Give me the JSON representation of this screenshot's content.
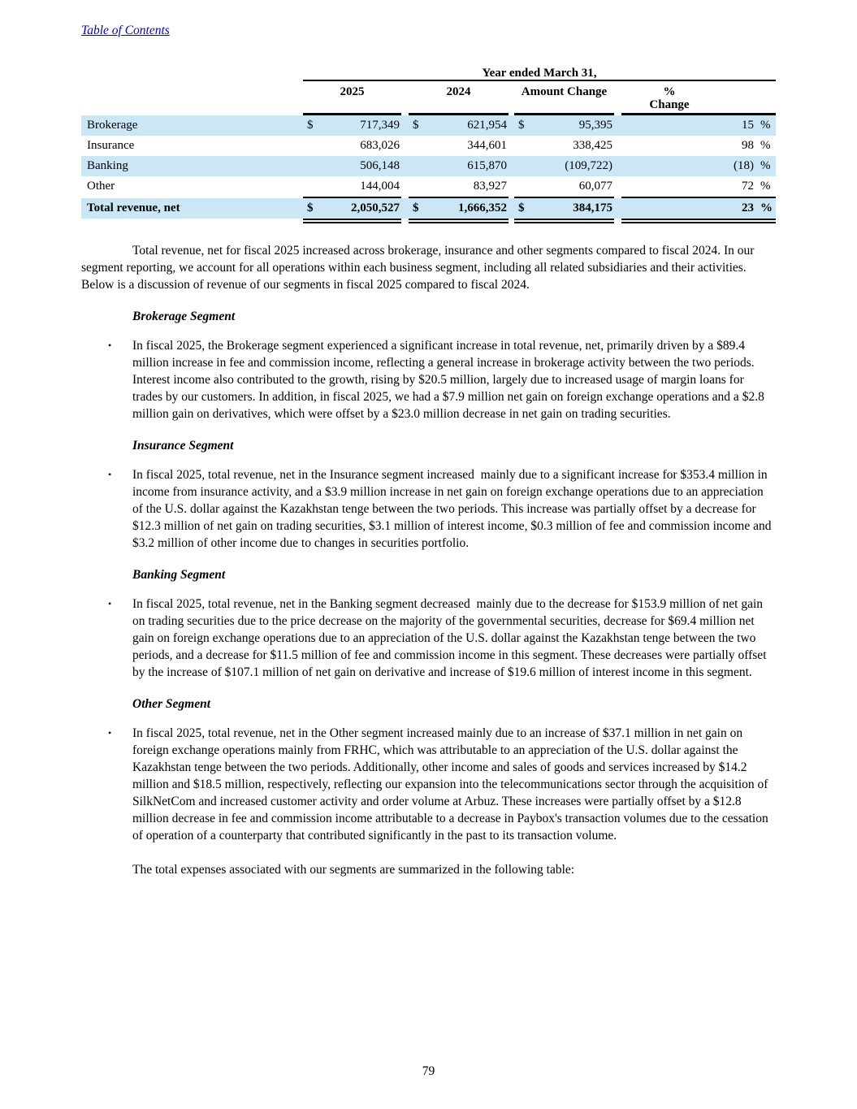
{
  "header": {
    "toc_link": "Table of Contents"
  },
  "table": {
    "spanner": "Year ended March 31,",
    "headers": {
      "y2025": "2025",
      "y2024": "2024",
      "amount": "Amount Change",
      "pct_line1": "%",
      "pct_line2": "Change"
    },
    "rows": [
      {
        "label": "Brokerage",
        "d1": "$",
        "v2025": "717,349",
        "d2": "$",
        "v2024": "621,954",
        "d3": "$",
        "change": "95,395",
        "pct": "15",
        "pct_sign": "%"
      },
      {
        "label": "Insurance",
        "d1": "",
        "v2025": "683,026",
        "d2": "",
        "v2024": "344,601",
        "d3": "",
        "change": "338,425",
        "pct": "98",
        "pct_sign": "%"
      },
      {
        "label": "Banking",
        "d1": "",
        "v2025": "506,148",
        "d2": "",
        "v2024": "615,870",
        "d3": "",
        "change": "(109,722)",
        "pct": "(18)",
        "pct_sign": "%"
      },
      {
        "label": "Other",
        "d1": "",
        "v2025": "144,004",
        "d2": "",
        "v2024": "83,927",
        "d3": "",
        "change": "60,077",
        "pct": "72",
        "pct_sign": "%"
      }
    ],
    "total": {
      "label": "Total revenue, net",
      "d1": "$",
      "v2025": "2,050,527",
      "d2": "$",
      "v2024": "1,666,352",
      "d3": "$",
      "change": "384,175",
      "pct": "23",
      "pct_sign": "%"
    },
    "stripe_color": "#cbe7f6"
  },
  "body": {
    "bullet_char": "•",
    "intro": "Total revenue, net for fiscal 2025 increased across brokerage, insurance and other segments compared to fiscal 2024. In our segment reporting, we account for all operations within each business segment, including all related subsidiaries and their activities. Below is a discussion of revenue of our segments in fiscal 2025 compared to fiscal 2024.",
    "sections": [
      {
        "heading": "Brokerage Segment",
        "bullet": "In fiscal 2025, the Brokerage segment experienced a significant increase in total revenue, net, primarily driven by a $89.4 million increase in fee and commission income, reflecting a general increase in brokerage activity between the two periods. Interest income also contributed to the growth, rising by $20.5 million, largely due to increased usage of margin loans for trades by our customers. In addition, in fiscal 2025, we had a $7.9 million net gain on foreign exchange operations and a $2.8 million gain on derivatives, which were offset by a $23.0 million decrease in net gain on trading securities."
      },
      {
        "heading": "Insurance Segment",
        "bullet": "In fiscal 2025, total revenue, net in the Insurance segment increased  mainly due to a significant increase for $353.4 million in income from insurance activity, and a $3.9 million increase in net gain on foreign exchange operations due to an appreciation of the U.S. dollar against the Kazakhstan tenge between the two periods. This increase was partially offset by a decrease for $12.3 million of net gain on trading securities, $3.1 million of interest income, $0.3 million of fee and commission income and $3.2 million of other income due to changes in securities portfolio."
      },
      {
        "heading": "Banking Segment",
        "bullet": "In fiscal 2025, total revenue, net in the Banking segment decreased  mainly due to the decrease for $153.9 million of net gain on trading securities due to the price decrease on the majority of the governmental securities, decrease for $69.4 million net gain on foreign exchange operations due to an appreciation of the U.S. dollar against the Kazakhstan tenge between the two periods, and a decrease for $11.5 million of fee and commission income in this segment. These decreases were partially offset by the increase of $107.1 million of net gain on derivative and increase of $19.6 million of interest income in this segment."
      },
      {
        "heading": "Other Segment",
        "bullet": "In fiscal 2025, total revenue, net in the Other segment increased mainly due to an increase of $37.1 million in net gain on foreign exchange operations mainly from FRHC, which was attributable to an appreciation of the U.S. dollar against the Kazakhstan tenge between the two periods. Additionally, other income and sales of goods and services increased by $14.2 million and $18.5 million, respectively, reflecting our expansion into the telecommunications sector through the acquisition of SilkNetCom and increased customer activity and order volume at Arbuz. These increases were partially offset by a $12.8 million decrease in fee and commission income attributable to a decrease in Paybox's transaction volumes due to the cessation of operation of a counterparty that contributed significantly in the past to its transaction volume."
      }
    ],
    "closing": "The total expenses associated with our segments are summarized in the following table:"
  },
  "footer": {
    "page_number": "79"
  }
}
